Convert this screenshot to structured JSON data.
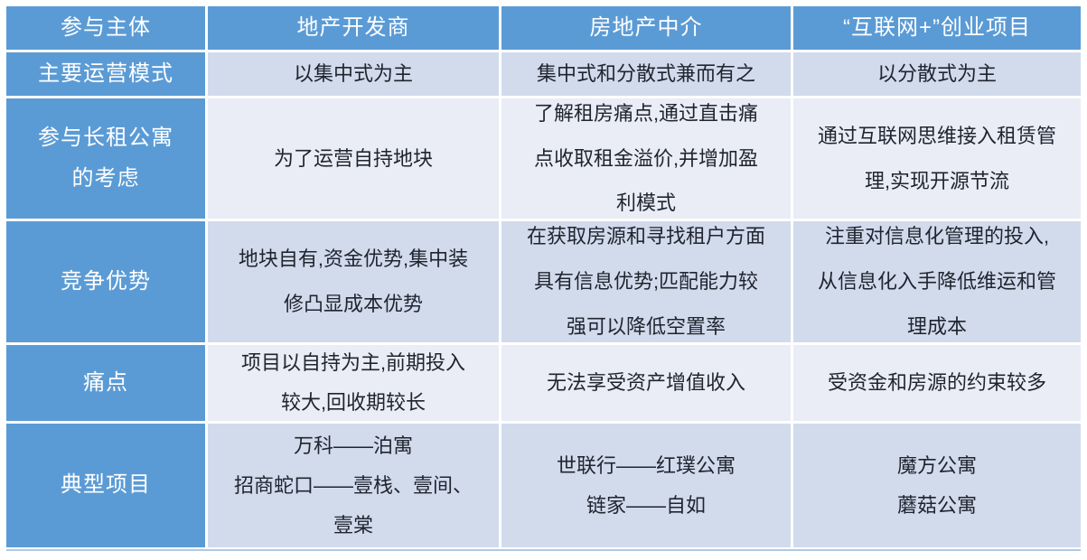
{
  "chart_data": {
    "type": "table",
    "columns": [
      "参与主体",
      "地产开发商",
      "房地产中介",
      "“互联网+”创业项目"
    ],
    "rows": [
      {
        "label": "主要运营模式",
        "cells": [
          "以集中式为主",
          "集中式和分散式兼而有之",
          "以分散式为主"
        ]
      },
      {
        "label": "参与长租公寓\n的考虑",
        "cells": [
          "为了运营自持地块",
          "了解租房痛点,通过直击痛点收取租金溢价,并增加盈利模式",
          "通过互联网思维接入租赁管理,实现开源节流"
        ]
      },
      {
        "label": "竞争优势",
        "cells": [
          "地块自有,资金优势,集中装修凸显成本优势",
          "在获取房源和寻找租户方面具有信息优势;匹配能力较强可以降低空置率",
          "注重对信息化管理的投入,从信息化入手降低维运和管理成本"
        ]
      },
      {
        "label": "痛点",
        "cells": [
          "项目以自持为主,前期投入较大,回收期较长",
          "无法享受资产增值收入",
          "受资金和房源的约束较多"
        ]
      },
      {
        "label": "典型项目",
        "cells": [
          "万科——泊寓\n招商蛇口——壹栈、壹间、壹棠",
          "世联行——红璞公寓\n链家——自如",
          "魔方公寓\n蘑菇公寓"
        ]
      }
    ],
    "layout": {
      "banded_rows": true,
      "header_position": "top-and-left"
    },
    "colors": {
      "header_bg": "#5b9bd5",
      "header_text": "#ffffff",
      "band_dark": "#d2dbec",
      "band_light": "#eaecf6",
      "body_text": "#1f242e",
      "bottom_rule": "#aec9e9"
    }
  }
}
